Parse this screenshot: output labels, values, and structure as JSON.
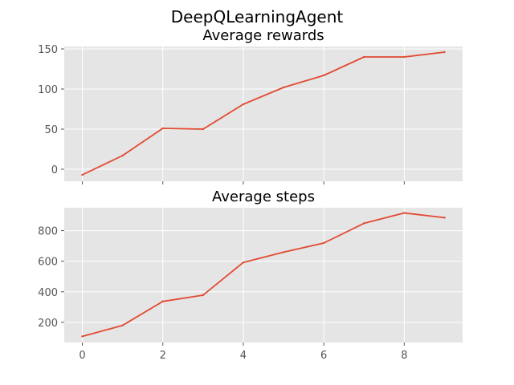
{
  "figure": {
    "suptitle": "DeepQLearningAgent"
  },
  "chart_data": [
    {
      "type": "line",
      "title": "Average rewards",
      "xlabel": "",
      "ylabel": "",
      "x": [
        0,
        1,
        2,
        3,
        4,
        5,
        6,
        7,
        8,
        9
      ],
      "series": [
        {
          "values": [
            -7,
            17,
            51,
            50,
            81,
            102,
            117,
            140,
            140,
            146
          ]
        }
      ],
      "xlim": [
        -0.45,
        9.45
      ],
      "ylim": [
        -15,
        153
      ],
      "xticks": [
        0,
        2,
        4,
        6,
        8
      ],
      "xticklabels_shown": false,
      "yticks": [
        0,
        50,
        100,
        150
      ],
      "grid": true,
      "colors": {
        "line": "#E24A33",
        "background": "#E5E5E5",
        "grid": "#ffffff"
      }
    },
    {
      "type": "line",
      "title": "Average steps",
      "xlabel": "",
      "ylabel": "",
      "x": [
        0,
        1,
        2,
        3,
        4,
        5,
        6,
        7,
        8,
        9
      ],
      "series": [
        {
          "values": [
            108,
            180,
            337,
            378,
            592,
            659,
            719,
            848,
            916,
            885
          ]
        }
      ],
      "xlim": [
        -0.45,
        9.45
      ],
      "ylim": [
        68,
        950
      ],
      "xticks": [
        0,
        2,
        4,
        6,
        8
      ],
      "xticklabels_shown": true,
      "yticks": [
        200,
        400,
        600,
        800
      ],
      "grid": true,
      "colors": {
        "line": "#E24A33",
        "background": "#E5E5E5",
        "grid": "#ffffff"
      }
    }
  ]
}
